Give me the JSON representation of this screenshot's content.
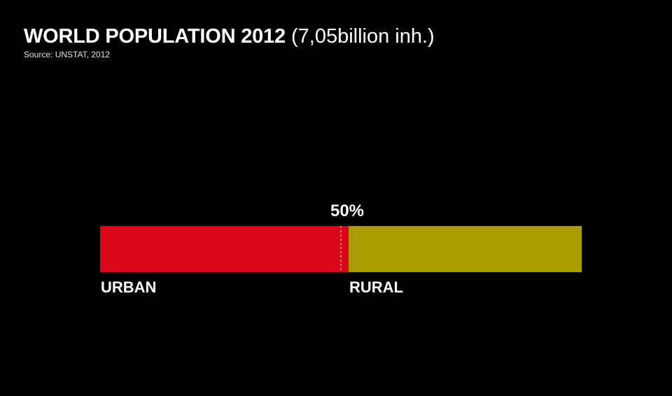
{
  "header": {
    "title_main": "WORLD POPULATION 2012",
    "title_note": "(7,05billion inh.)",
    "source": "Source: UNSTAT, 2012"
  },
  "chart_data": {
    "type": "bar",
    "orientation": "horizontal-stacked",
    "categories": [
      "URBAN",
      "RURAL"
    ],
    "values": [
      51.6,
      48.4
    ],
    "unit": "%",
    "reference_line": {
      "value": 50,
      "label": "50%",
      "style": "dashed"
    },
    "xlim": [
      0,
      100
    ],
    "colors": [
      "#d9071a",
      "#ab9c04"
    ],
    "grid": false,
    "legend": "none"
  }
}
